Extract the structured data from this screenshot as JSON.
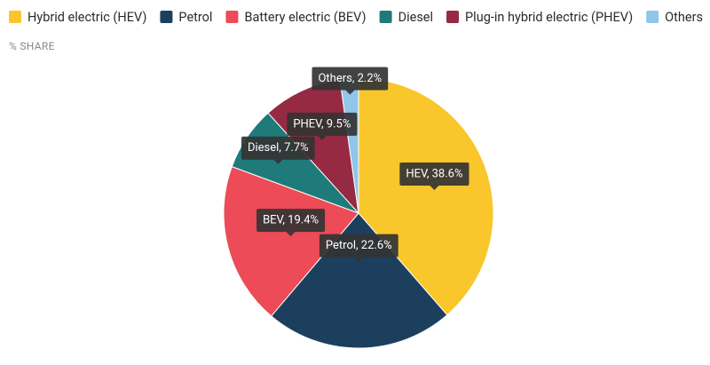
{
  "chart_data": {
    "type": "pie",
    "subtitle": "% SHARE",
    "categories": [
      "Hybrid electric (HEV)",
      "Petrol",
      "Battery electric (BEV)",
      "Diesel",
      "Plug-in hybrid electric (PHEV)",
      "Others"
    ],
    "values": [
      38.6,
      22.6,
      19.4,
      7.7,
      9.5,
      2.2
    ],
    "value_labels": [
      "HEV, 38.6%",
      "Petrol, 22.6%",
      "BEV, 19.4%",
      "Diesel, 7.7%",
      "PHEV, 9.5%",
      "Others, 2.2%"
    ],
    "colors": [
      "#f9c62b",
      "#1c3f5e",
      "#ec4b57",
      "#1f7a7a",
      "#952a42",
      "#8fc6ea"
    ]
  }
}
